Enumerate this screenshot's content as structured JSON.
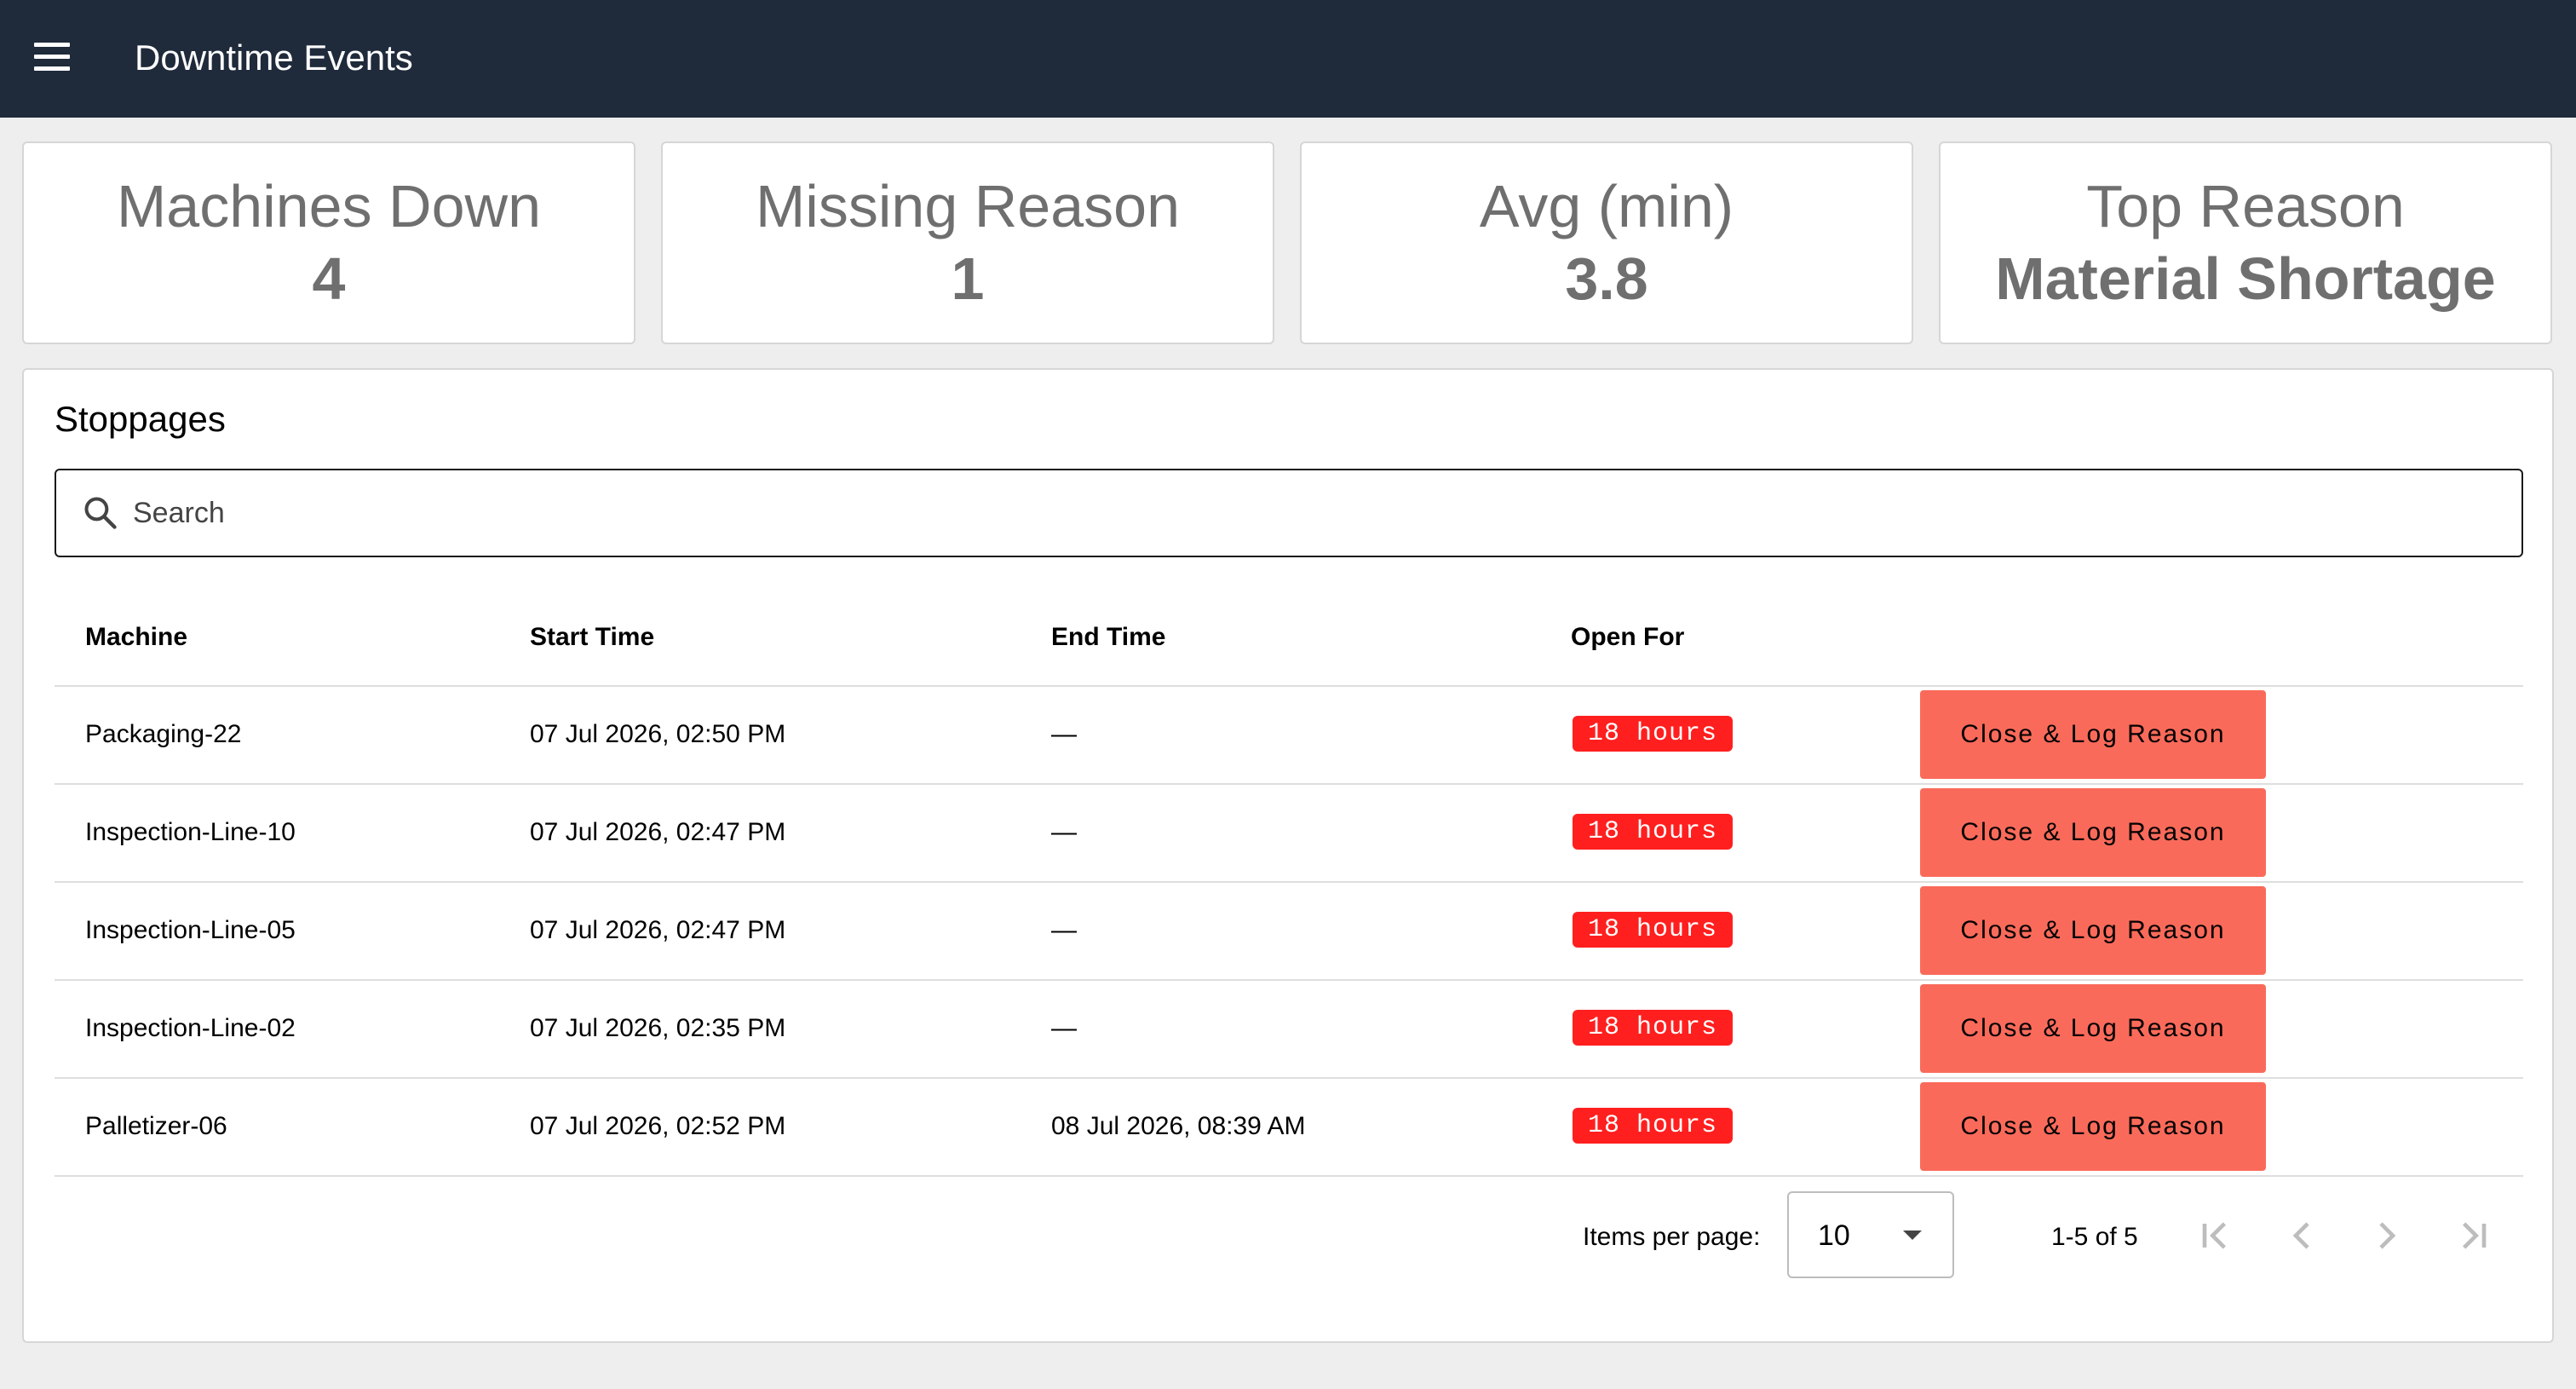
{
  "toolbar": {
    "menu_icon": "menu-icon",
    "title": "Downtime Events"
  },
  "kpis": [
    {
      "label": "Machines Down",
      "value": "4"
    },
    {
      "label": "Missing Reason",
      "value": "1"
    },
    {
      "label": "Avg (min)",
      "value": "3.8"
    },
    {
      "label": "Top Reason",
      "value": "Material Shortage"
    }
  ],
  "stoppages": {
    "title": "Stoppages",
    "search": {
      "icon": "search-icon",
      "placeholder": "Search",
      "value": ""
    },
    "columns": [
      "Machine",
      "Start Time",
      "End Time",
      "Open For"
    ],
    "rows": [
      {
        "machine": "Packaging-22",
        "start": "07 Jul 2026, 02:50 PM",
        "end": "—",
        "open_for": "18 hours",
        "action": "Close & Log Reason"
      },
      {
        "machine": "Inspection-Line-10",
        "start": "07 Jul 2026, 02:47 PM",
        "end": "—",
        "open_for": "18 hours",
        "action": "Close & Log Reason"
      },
      {
        "machine": "Inspection-Line-05",
        "start": "07 Jul 2026, 02:47 PM",
        "end": "—",
        "open_for": "18 hours",
        "action": "Close & Log Reason"
      },
      {
        "machine": "Inspection-Line-02",
        "start": "07 Jul 2026, 02:35 PM",
        "end": "—",
        "open_for": "18 hours",
        "action": "Close & Log Reason"
      },
      {
        "machine": "Palletizer-06",
        "start": "07 Jul 2026, 02:52 PM",
        "end": "08 Jul 2026, 08:39 AM",
        "open_for": "18 hours",
        "action": "Close & Log Reason"
      }
    ],
    "paginator": {
      "items_per_page_label": "Items per page:",
      "items_per_page_value": "10",
      "range_label": "1-5 of 5",
      "icons": [
        "first-page-icon",
        "previous-page-icon",
        "next-page-icon",
        "last-page-icon"
      ]
    }
  },
  "colors": {
    "toolbar_bg": "#1f2a3b",
    "page_bg": "#eeeeee",
    "badge_bg": "#ff1f1f",
    "action_bg": "#fa6a5a",
    "kpi_text": "#6f6f6f"
  }
}
